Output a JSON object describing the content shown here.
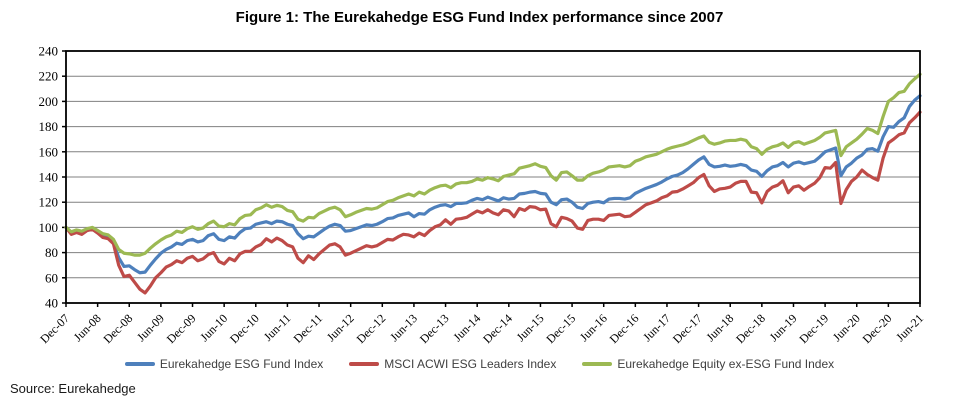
{
  "title": "Figure 1: The Eurekahedge ESG Fund Index performance since 2007",
  "source_label": "Source: Eurekahedge",
  "chart_data": {
    "type": "line",
    "title": "Figure 1: The Eurekahedge ESG Fund Index performance since 2007",
    "x_interval": "monthly",
    "x_start": "Dec-07",
    "x_end": "Jun-21",
    "x_tick_labels": [
      "Dec-07",
      "Jun-08",
      "Dec-08",
      "Jun-09",
      "Dec-09",
      "Jun-10",
      "Dec-10",
      "Jun-11",
      "Dec-11",
      "Jun-12",
      "Dec-12",
      "Jun-13",
      "Dec-13",
      "Jun-14",
      "Dec-14",
      "Jun-15",
      "Dec-15",
      "Jun-16",
      "Dec-16",
      "Jun-17",
      "Dec-17",
      "Jun-18",
      "Dec-18",
      "Jun-19",
      "Dec-19",
      "Jun-20",
      "Dec-20",
      "Jun-21"
    ],
    "x_ticks_every_n_points": 6,
    "ylim": [
      40,
      240
    ],
    "y_ticks": [
      40,
      60,
      80,
      100,
      120,
      140,
      160,
      180,
      200,
      220,
      240
    ],
    "grid": true,
    "gridline_color": "#808080",
    "border_color": "#000000",
    "legend_position": "bottom",
    "series": [
      {
        "name": "Eurekahedge ESG Fund Index",
        "color": "#4E80BC",
        "values": [
          100,
          95.5,
          97,
          95.5,
          98,
          99,
          96.5,
          93.5,
          92.5,
          88,
          76,
          69,
          69.5,
          66.5,
          64,
          64.5,
          70,
          75,
          79.5,
          82.5,
          84.5,
          87.5,
          86.5,
          89.5,
          90.5,
          88.5,
          89.5,
          93.5,
          95,
          90.5,
          89.5,
          92.5,
          91.5,
          96,
          99,
          99.5,
          102.5,
          103.5,
          104.5,
          103,
          105,
          104.5,
          102.5,
          101.5,
          95,
          91,
          93,
          92.5,
          95.5,
          98.5,
          101,
          102.5,
          101.5,
          97,
          97.5,
          99,
          100.5,
          102,
          101.5,
          102.5,
          104.5,
          107,
          107.5,
          109.5,
          110.5,
          111.5,
          108.5,
          111,
          110.5,
          114,
          116,
          117.5,
          118,
          116.5,
          119,
          119,
          119.5,
          121.5,
          123,
          122,
          124,
          122.5,
          121,
          123.5,
          122.5,
          123,
          126.5,
          127,
          128,
          128.5,
          127,
          126.5,
          120,
          118,
          122,
          122.5,
          120,
          116,
          115,
          119,
          120,
          120.5,
          119.5,
          122.5,
          123,
          123,
          122.5,
          123.5,
          127,
          129,
          131,
          132.5,
          134,
          136,
          138.5,
          140.5,
          141.5,
          143.5,
          146.5,
          150,
          153.5,
          156,
          150,
          148,
          148.5,
          149.5,
          148.5,
          149,
          150,
          149,
          145.5,
          144.5,
          140.5,
          145,
          148,
          149,
          151.5,
          148,
          151,
          152,
          150.5,
          151.5,
          152.5,
          156,
          160,
          161.5,
          163,
          141,
          148,
          151,
          155,
          157.5,
          162,
          162.5,
          160.5,
          172,
          180,
          179.5,
          184,
          187,
          196,
          201,
          204.5
        ]
      },
      {
        "name": "MSCI ACWI ESG Leaders Index",
        "color": "#BE4B48",
        "values": [
          100,
          94.5,
          96,
          94.5,
          97.5,
          98.5,
          95.5,
          92,
          91,
          87,
          70,
          61,
          62,
          56.5,
          51,
          48,
          53.5,
          60,
          64,
          68.5,
          70.5,
          73.5,
          72,
          75.5,
          77,
          73.5,
          75,
          78.5,
          80,
          73,
          71,
          75.5,
          73.5,
          79,
          81,
          81,
          84.5,
          86.5,
          91,
          88.5,
          91.5,
          89.5,
          86,
          84.5,
          75.5,
          72,
          77.5,
          74.5,
          79,
          82.5,
          86,
          87,
          84.5,
          78,
          79.5,
          81.5,
          83.5,
          85.5,
          84.5,
          85.5,
          88,
          90.5,
          90,
          92.5,
          94.5,
          94,
          92.5,
          95.5,
          93.5,
          97.5,
          100.5,
          102,
          106,
          102.5,
          106.5,
          107,
          108,
          110.5,
          113,
          111.5,
          114,
          111.5,
          110,
          114,
          113,
          108.5,
          115,
          113.5,
          116.5,
          116,
          114,
          114.5,
          103,
          100.5,
          108,
          107,
          105,
          99.5,
          98.5,
          105.5,
          106.5,
          106.5,
          105.5,
          109.5,
          110,
          110.5,
          108.5,
          109,
          112,
          115,
          118,
          119.5,
          121,
          123.5,
          125,
          128,
          128.5,
          130.5,
          133,
          135.5,
          139.5,
          142,
          133,
          128.5,
          130.5,
          131,
          132,
          135,
          136.5,
          136.5,
          128,
          127.5,
          119.5,
          128.5,
          132,
          133.5,
          137,
          127.5,
          132,
          133,
          129.5,
          132.5,
          135,
          139.5,
          147.5,
          147,
          151.5,
          119,
          130,
          136.5,
          140,
          145.5,
          142,
          139.5,
          137.5,
          155,
          167,
          170,
          173.5,
          175,
          183,
          187,
          191.5
        ]
      },
      {
        "name": "Eurekahedge Equity ex-ESG Fund Index",
        "color": "#9CB953",
        "values": [
          100,
          96.5,
          98,
          97,
          99,
          100,
          97.5,
          95,
          94,
          90.5,
          82.5,
          79.5,
          79,
          78,
          78,
          79.5,
          83.5,
          87,
          90,
          92.5,
          94,
          97,
          96,
          99,
          100.5,
          98.5,
          99.5,
          103,
          105,
          101,
          100.5,
          103,
          102,
          107,
          109.5,
          110,
          114,
          115.5,
          118,
          116,
          117.5,
          116.5,
          113.5,
          112.5,
          106.5,
          105,
          108,
          107.5,
          111,
          113,
          115,
          116,
          114,
          108.5,
          110,
          112,
          113.5,
          115,
          114.5,
          115.5,
          118,
          120.5,
          121.5,
          123.5,
          125,
          126.5,
          125,
          128,
          126.5,
          129.5,
          131.5,
          133,
          133.5,
          131.5,
          134.5,
          135.5,
          135.5,
          136.5,
          138.5,
          137.5,
          139.5,
          138.5,
          137,
          140.5,
          141.5,
          142.5,
          147,
          148,
          149,
          150.5,
          148.5,
          147.5,
          141,
          137.5,
          143.5,
          144,
          141,
          137.5,
          137.5,
          141,
          143,
          144,
          145.5,
          148,
          148.5,
          149,
          148,
          149,
          152.5,
          154,
          156,
          157,
          158,
          160,
          162,
          163.5,
          164.5,
          165.5,
          167,
          169,
          171,
          172.5,
          167.5,
          166,
          167,
          168.5,
          169,
          169,
          170,
          169,
          164,
          162.5,
          158,
          162,
          164,
          165,
          167,
          163.5,
          167,
          168,
          166,
          167.5,
          169,
          171.5,
          175,
          176,
          177,
          157,
          164,
          167,
          170,
          174,
          178.5,
          177,
          174.5,
          188,
          200,
          203,
          207,
          208,
          214,
          218,
          221.5
        ]
      }
    ]
  },
  "legend": {
    "items": [
      {
        "label": "Eurekahedge ESG Fund Index"
      },
      {
        "label": "MSCI ACWI ESG Leaders Index"
      },
      {
        "label": "Eurekahedge Equity ex-ESG Fund Index"
      }
    ]
  }
}
